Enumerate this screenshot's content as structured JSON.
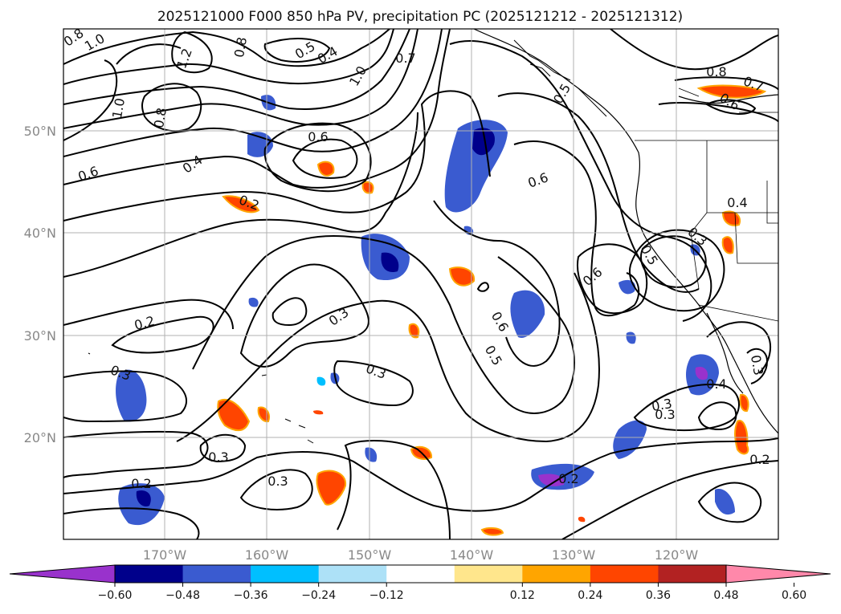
{
  "title": "2025121000 F000 850 hPa PV, precipitation PC (2025121212 - 2025121312)",
  "map": {
    "lat_labels": [
      "50°N",
      "40°N",
      "30°N",
      "20°N"
    ],
    "lon_labels": [
      "170°W",
      "160°W",
      "150°W",
      "140°W",
      "130°W",
      "120°W"
    ],
    "grid": true,
    "contour_labels": [
      "0.8",
      "1.0",
      "1.2",
      "0.8",
      "1.0",
      "0.8",
      "0.5",
      "0.4",
      "1.0",
      "0.7",
      "0.4",
      "0.6",
      "0.6",
      "0.2",
      "0.6",
      "0.5",
      "0.8",
      "0.7",
      "0.6",
      "0.4",
      "0.3",
      "0.5",
      "0.6",
      "0.3",
      "0.2",
      "0.3",
      "0.3",
      "0.6",
      "0.5",
      "0.3",
      "0.3",
      "0.4",
      "0.2",
      "0.3",
      "0.3",
      "0.2",
      "0.2",
      "0.3"
    ]
  },
  "colorbar": {
    "tick_labels": [
      "−0.60",
      "−0.48",
      "−0.36",
      "−0.24",
      "−0.12",
      "0.12",
      "0.24",
      "0.36",
      "0.48",
      "0.60"
    ],
    "colors": [
      "#9932CC",
      "#00008B",
      "#3A5BD0",
      "#00BFFF",
      "#ADE1F7",
      "#FFFFFF",
      "#FFE68C",
      "#FFA500",
      "#FF4500",
      "#B22222",
      "#FF88AA"
    ]
  }
}
